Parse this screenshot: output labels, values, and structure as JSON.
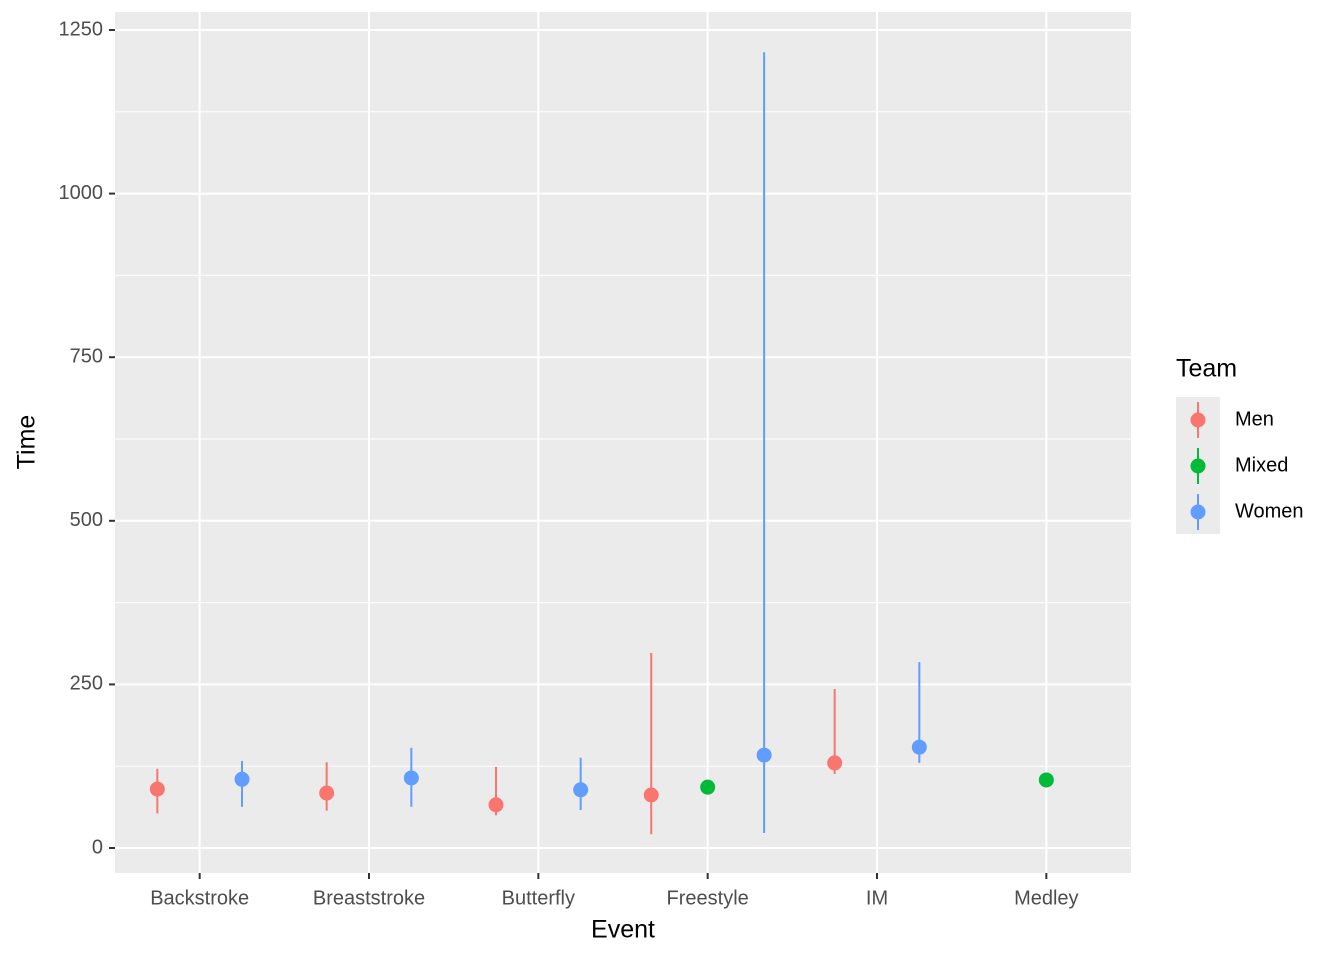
{
  "chart_data": {
    "type": "pointrange",
    "x_label": "Event",
    "y_label": "Time",
    "categories": [
      "Backstroke",
      "Breaststroke",
      "Butterfly",
      "Freestyle",
      "IM",
      "Medley"
    ],
    "legend_title": "Team",
    "legend_position": "right",
    "ylim": [
      -38.2,
      1277.5
    ],
    "yticks": [
      0,
      250,
      500,
      750,
      1000,
      1250
    ],
    "grid": true,
    "series": [
      {
        "name": "Men",
        "color": "#F8766D",
        "values": [
          90,
          84,
          66,
          81,
          130,
          null
        ],
        "ymin": [
          53,
          57,
          50,
          21,
          113,
          null
        ],
        "ymax": [
          121,
          131,
          124,
          298,
          243,
          null
        ]
      },
      {
        "name": "Mixed",
        "color": "#00BA38",
        "values": [
          null,
          null,
          null,
          93,
          null,
          104
        ],
        "ymin": [
          null,
          null,
          null,
          93,
          null,
          104
        ],
        "ymax": [
          null,
          null,
          null,
          93,
          null,
          104
        ]
      },
      {
        "name": "Women",
        "color": "#619CFF",
        "values": [
          105,
          107,
          89,
          142,
          154,
          null
        ],
        "ymin": [
          63,
          63,
          58,
          23,
          130,
          null
        ],
        "ymax": [
          133,
          153,
          138,
          1216,
          284,
          null
        ]
      }
    ]
  }
}
